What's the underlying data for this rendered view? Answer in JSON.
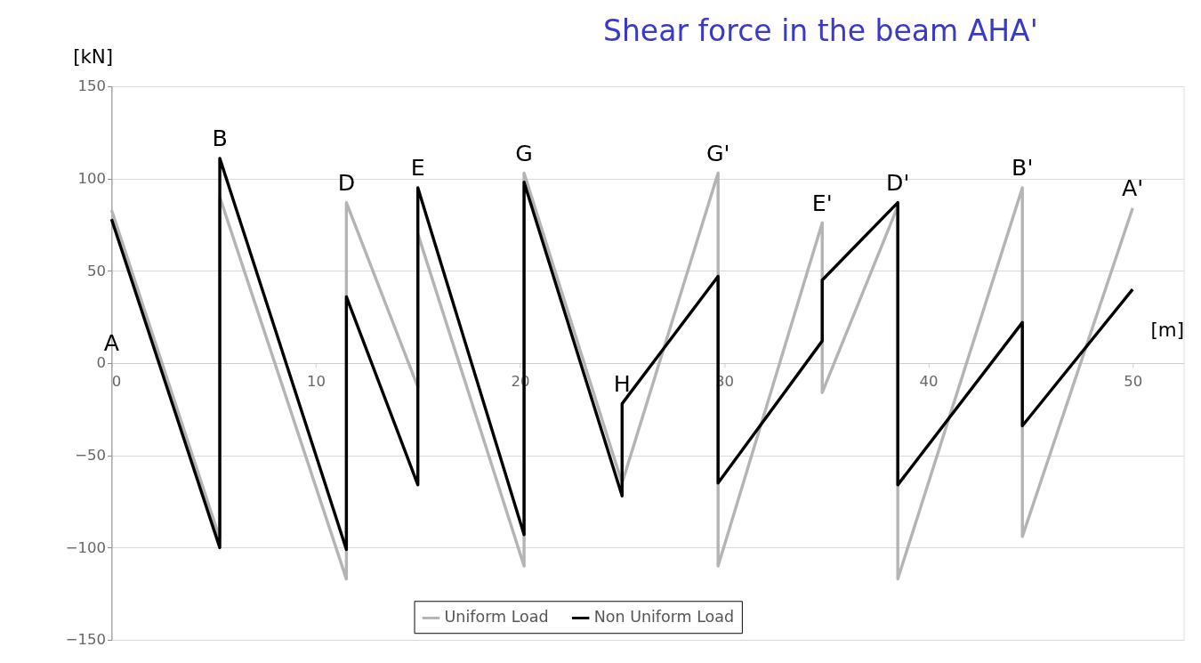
{
  "chart_data": {
    "type": "line",
    "title": "Shear force in the beam AHA'",
    "xlabel": "[m]",
    "ylabel": "[kN]",
    "xlim": [
      0,
      52.5
    ],
    "xticks": [
      0,
      10,
      20,
      30,
      40,
      50
    ],
    "ylim": [
      -150,
      150
    ],
    "yticks": [
      -150,
      -100,
      -50,
      0,
      50,
      100,
      150
    ],
    "grid": "y",
    "legend": "bottom",
    "line_style": "solid",
    "marker": "none",
    "series": [
      {
        "name": "Uniform Load",
        "color": "#b4b4b4",
        "x": [
          0,
          5.3,
          5.3,
          11.5,
          11.5,
          15.0,
          15.0,
          20.2,
          20.2,
          25.0,
          29.7,
          29.7,
          34.8,
          34.8,
          38.5,
          38.5,
          44.6,
          44.6,
          50.0
        ],
        "values": [
          83,
          -95,
          90,
          -117,
          87,
          -13,
          70,
          -110,
          103,
          -65,
          103,
          -110,
          76,
          -16,
          85,
          -117,
          95,
          -94,
          84
        ]
      },
      {
        "name": "Non Uniform Load",
        "color": "#000000",
        "x": [
          0,
          5.3,
          5.3,
          11.5,
          11.5,
          15.0,
          15.0,
          20.2,
          20.2,
          25.0,
          25.0,
          29.7,
          29.7,
          34.8,
          34.8,
          38.5,
          38.5,
          44.6,
          44.6,
          50.0
        ],
        "values": [
          78,
          -100,
          111,
          -101,
          36,
          -66,
          95,
          -93,
          98,
          -72,
          -22,
          47,
          -65,
          12,
          45,
          87,
          -66,
          22,
          -34,
          40
        ]
      }
    ],
    "annotations": [
      "A",
      {
        "text": "B",
        "x": 5.3,
        "y": 111
      },
      {
        "text": "D",
        "x": 11.5,
        "y": 87
      },
      {
        "text": "E",
        "x": 15.0,
        "y": 95
      },
      {
        "text": "G",
        "x": 20.2,
        "y": 103
      },
      {
        "text": "H",
        "x": 25.0,
        "y": -22
      },
      {
        "text": "G'",
        "x": 29.7,
        "y": 103
      },
      {
        "text": "E'",
        "x": 34.8,
        "y": 76
      },
      {
        "text": "D'",
        "x": 38.5,
        "y": 87
      },
      {
        "text": "B'",
        "x": 44.6,
        "y": 95
      },
      {
        "text": "A'",
        "x": 50.0,
        "y": 84
      }
    ]
  }
}
